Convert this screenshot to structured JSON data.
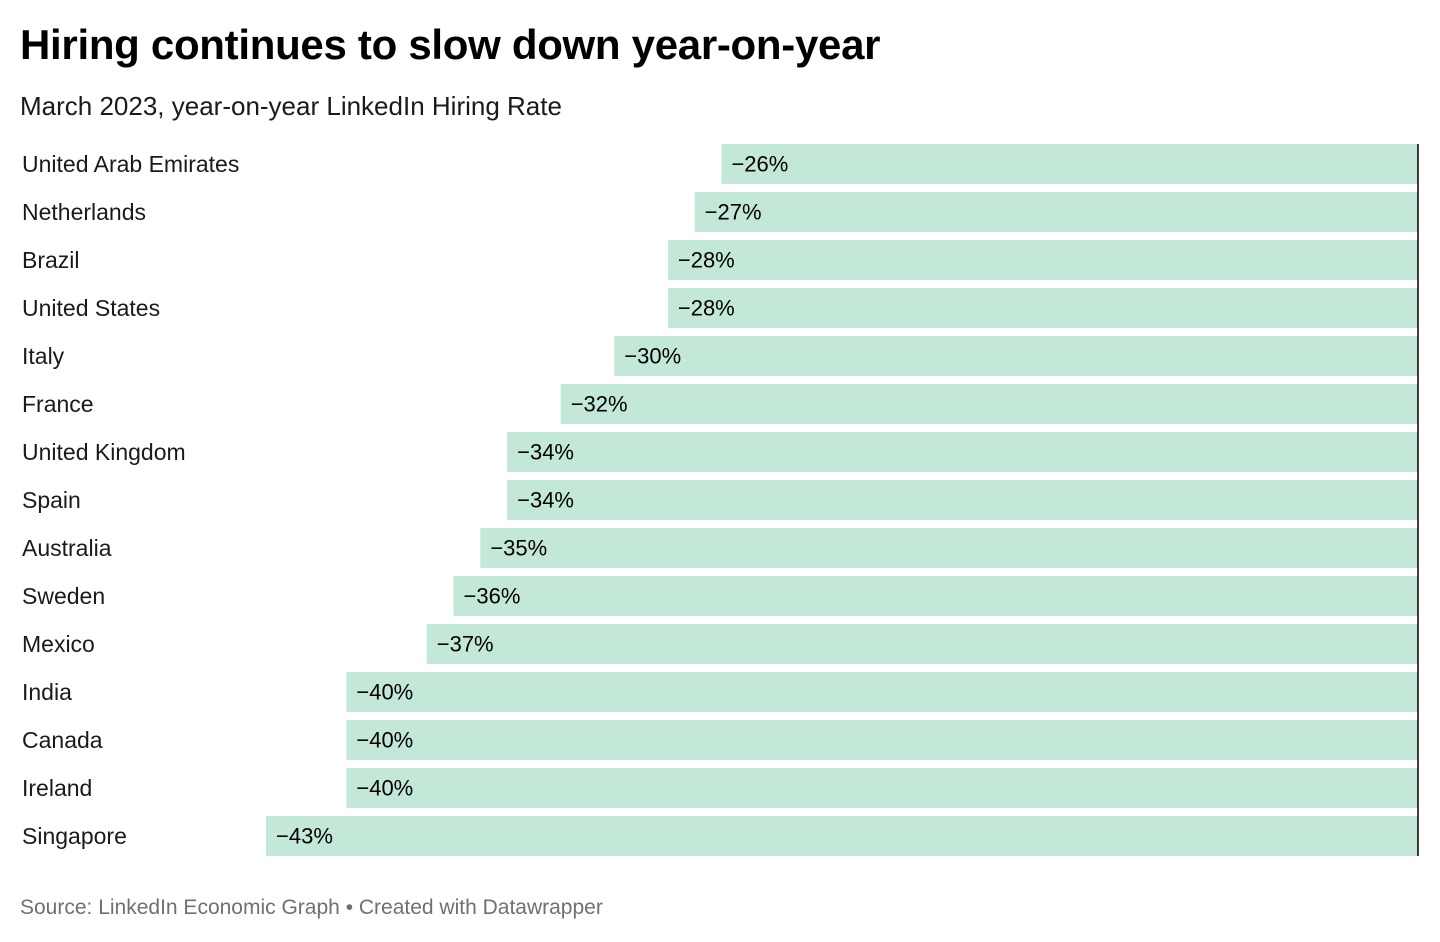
{
  "header": {
    "title": "Hiring continues to slow down year-on-year",
    "subtitle": "March 2023, year-on-year LinkedIn Hiring Rate"
  },
  "footer": {
    "source_text": "Source: LinkedIn Economic Graph",
    "separator": "•",
    "credit_text": "Created with Datawrapper"
  },
  "colors": {
    "bar_fill": "#c3e8d7",
    "axis_line": "#000000",
    "label_text": "#1a1a1a",
    "footer_text": "#707070"
  },
  "chart_data": {
    "type": "bar",
    "orientation": "horizontal",
    "title": "Hiring continues to slow down year-on-year",
    "subtitle": "March 2023, year-on-year LinkedIn Hiring Rate",
    "categories": [
      "United Arab Emirates",
      "Netherlands",
      "Brazil",
      "United States",
      "Italy",
      "France",
      "United Kingdom",
      "Spain",
      "Australia",
      "Sweden",
      "Mexico",
      "India",
      "Canada",
      "Ireland",
      "Singapore"
    ],
    "values": [
      -26,
      -27,
      -28,
      -28,
      -30,
      -32,
      -34,
      -34,
      -35,
      -36,
      -37,
      -40,
      -40,
      -40,
      -43
    ],
    "value_labels": [
      "−26%",
      "−27%",
      "−28%",
      "−28%",
      "−30%",
      "−32%",
      "−34%",
      "−34%",
      "−35%",
      "−36%",
      "−37%",
      "−40%",
      "−40%",
      "−40%",
      "−43%"
    ],
    "unit": "%",
    "xlim": [
      -43,
      0
    ],
    "baseline": 0,
    "baseline_position": "right",
    "grid": false,
    "legend": "none"
  }
}
